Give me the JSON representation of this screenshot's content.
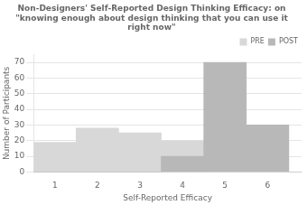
{
  "chart_data": {
    "type": "histogram",
    "title": "Non-Designers' Self-Reported Design Thinking Efficacy: on \"knowing enough about design thinking that you can use it right now\"",
    "xlabel": "Self-Reported Efficacy",
    "ylabel": "Number of Participants",
    "bins": [
      0.5,
      1.5,
      2.5,
      3.5,
      4.5,
      5.5,
      6.5
    ],
    "series": [
      {
        "name": "PRE",
        "color": "#d8d8d8",
        "values": [
          19,
          28,
          25,
          20,
          0,
          0
        ]
      },
      {
        "name": "POST",
        "color": "#b8b8b8",
        "values": [
          0,
          0,
          0,
          10,
          70,
          30
        ]
      }
    ],
    "xlim": [
      0.5,
      6.8
    ],
    "xticks": [
      1,
      2,
      3,
      4,
      5,
      6
    ],
    "ylim": [
      0,
      75
    ],
    "yticks": [
      0,
      10,
      20,
      30,
      40,
      50,
      60,
      70
    ],
    "grid": true,
    "legend": "upper right"
  }
}
